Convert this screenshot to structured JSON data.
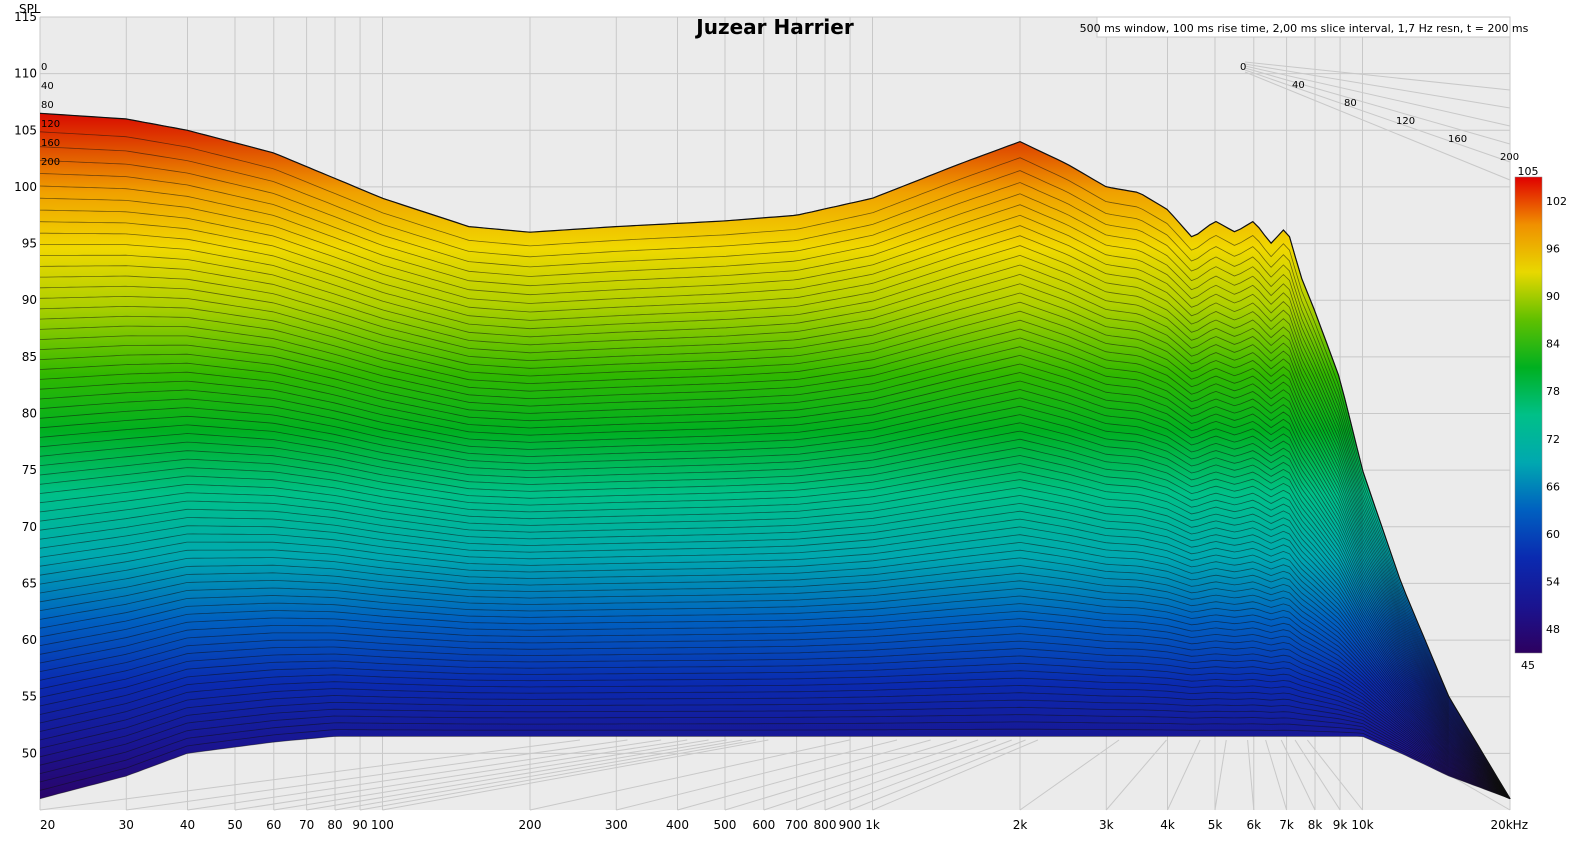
{
  "chart": {
    "title": "Juzear Harrier",
    "parameters": "500 ms window, 100 ms rise time, 2,00 ms slice interval, 1,7 Hz resn, t = 200 ms",
    "y_axis_label": "SPL",
    "y_ticks": [
      "115",
      "110",
      "105",
      "100",
      "95",
      "90",
      "85",
      "80",
      "75",
      "70",
      "65",
      "60",
      "55",
      "50"
    ],
    "x_ticks": [
      "20",
      "30",
      "40",
      "50",
      "60",
      "70",
      "80",
      "90",
      "100",
      "200",
      "300",
      "400",
      "500",
      "600",
      "700",
      "800",
      "900",
      "1k",
      "2k",
      "3k",
      "4k",
      "5k",
      "6k",
      "7k",
      "8k",
      "9k",
      "10k",
      "20kHz"
    ],
    "time_labels_left": [
      "0",
      "40",
      "80",
      "120",
      "160",
      "200"
    ],
    "time_labels_right": [
      "0",
      "40",
      "80",
      "120",
      "160",
      "200"
    ],
    "colorbar_ticks": [
      "105",
      "102",
      "96",
      "90",
      "84",
      "78",
      "72",
      "66",
      "60",
      "54",
      "48",
      "45"
    ]
  },
  "colors": {
    "plot_background": "#ebebeb",
    "grid": "#c8c8c8",
    "colormap": [
      "#2d0060",
      "#0a1aa0",
      "#0060c0",
      "#00b0b0",
      "#00c080",
      "#00b000",
      "#40c000",
      "#c8d800",
      "#f0d800",
      "#f0a000",
      "#e04000",
      "#d80000"
    ]
  },
  "chart_data": {
    "type": "waterfall",
    "title": "Juzear Harrier",
    "ylabel": "SPL",
    "xlabel": "",
    "x_scale": "log",
    "x_range": [
      20,
      20000
    ],
    "y_range": [
      45,
      115
    ],
    "z_range_ms": [
      0,
      200
    ],
    "slice_interval_ms": 2,
    "colorbar_range": [
      45,
      105
    ],
    "series": [
      {
        "name": "0",
        "freq_hz": [
          20,
          30,
          40,
          60,
          100,
          150,
          200,
          300,
          500,
          700,
          1000,
          1500,
          2000,
          2500,
          3000,
          3500,
          4000,
          4500,
          5000,
          5500,
          6000,
          6500,
          7000,
          7500,
          8000,
          9000,
          10000,
          12000,
          15000,
          20000
        ],
        "spl": [
          106.5,
          106,
          105,
          103,
          99,
          96.5,
          96,
          96.5,
          97,
          97.5,
          99,
          102,
          104,
          102,
          100,
          99.5,
          98,
          95.5,
          97,
          96,
          97,
          95,
          96.5,
          92,
          89,
          83,
          75,
          65,
          55,
          46
        ]
      },
      {
        "name": "200",
        "freq_hz": [
          20,
          30,
          40,
          60,
          80,
          100,
          150,
          200,
          300,
          500,
          700,
          1000,
          1500,
          2000,
          3000,
          4000,
          5000,
          6000,
          8000,
          10000,
          12000,
          15000,
          20000
        ],
        "spl": [
          46,
          48,
          50,
          51,
          51.5,
          51.5,
          51.5,
          51.5,
          51.5,
          51.5,
          51.5,
          51.5,
          51.5,
          51.5,
          51.5,
          51.5,
          51.5,
          51.5,
          51.5,
          51.5,
          50,
          48,
          46
        ]
      }
    ]
  }
}
